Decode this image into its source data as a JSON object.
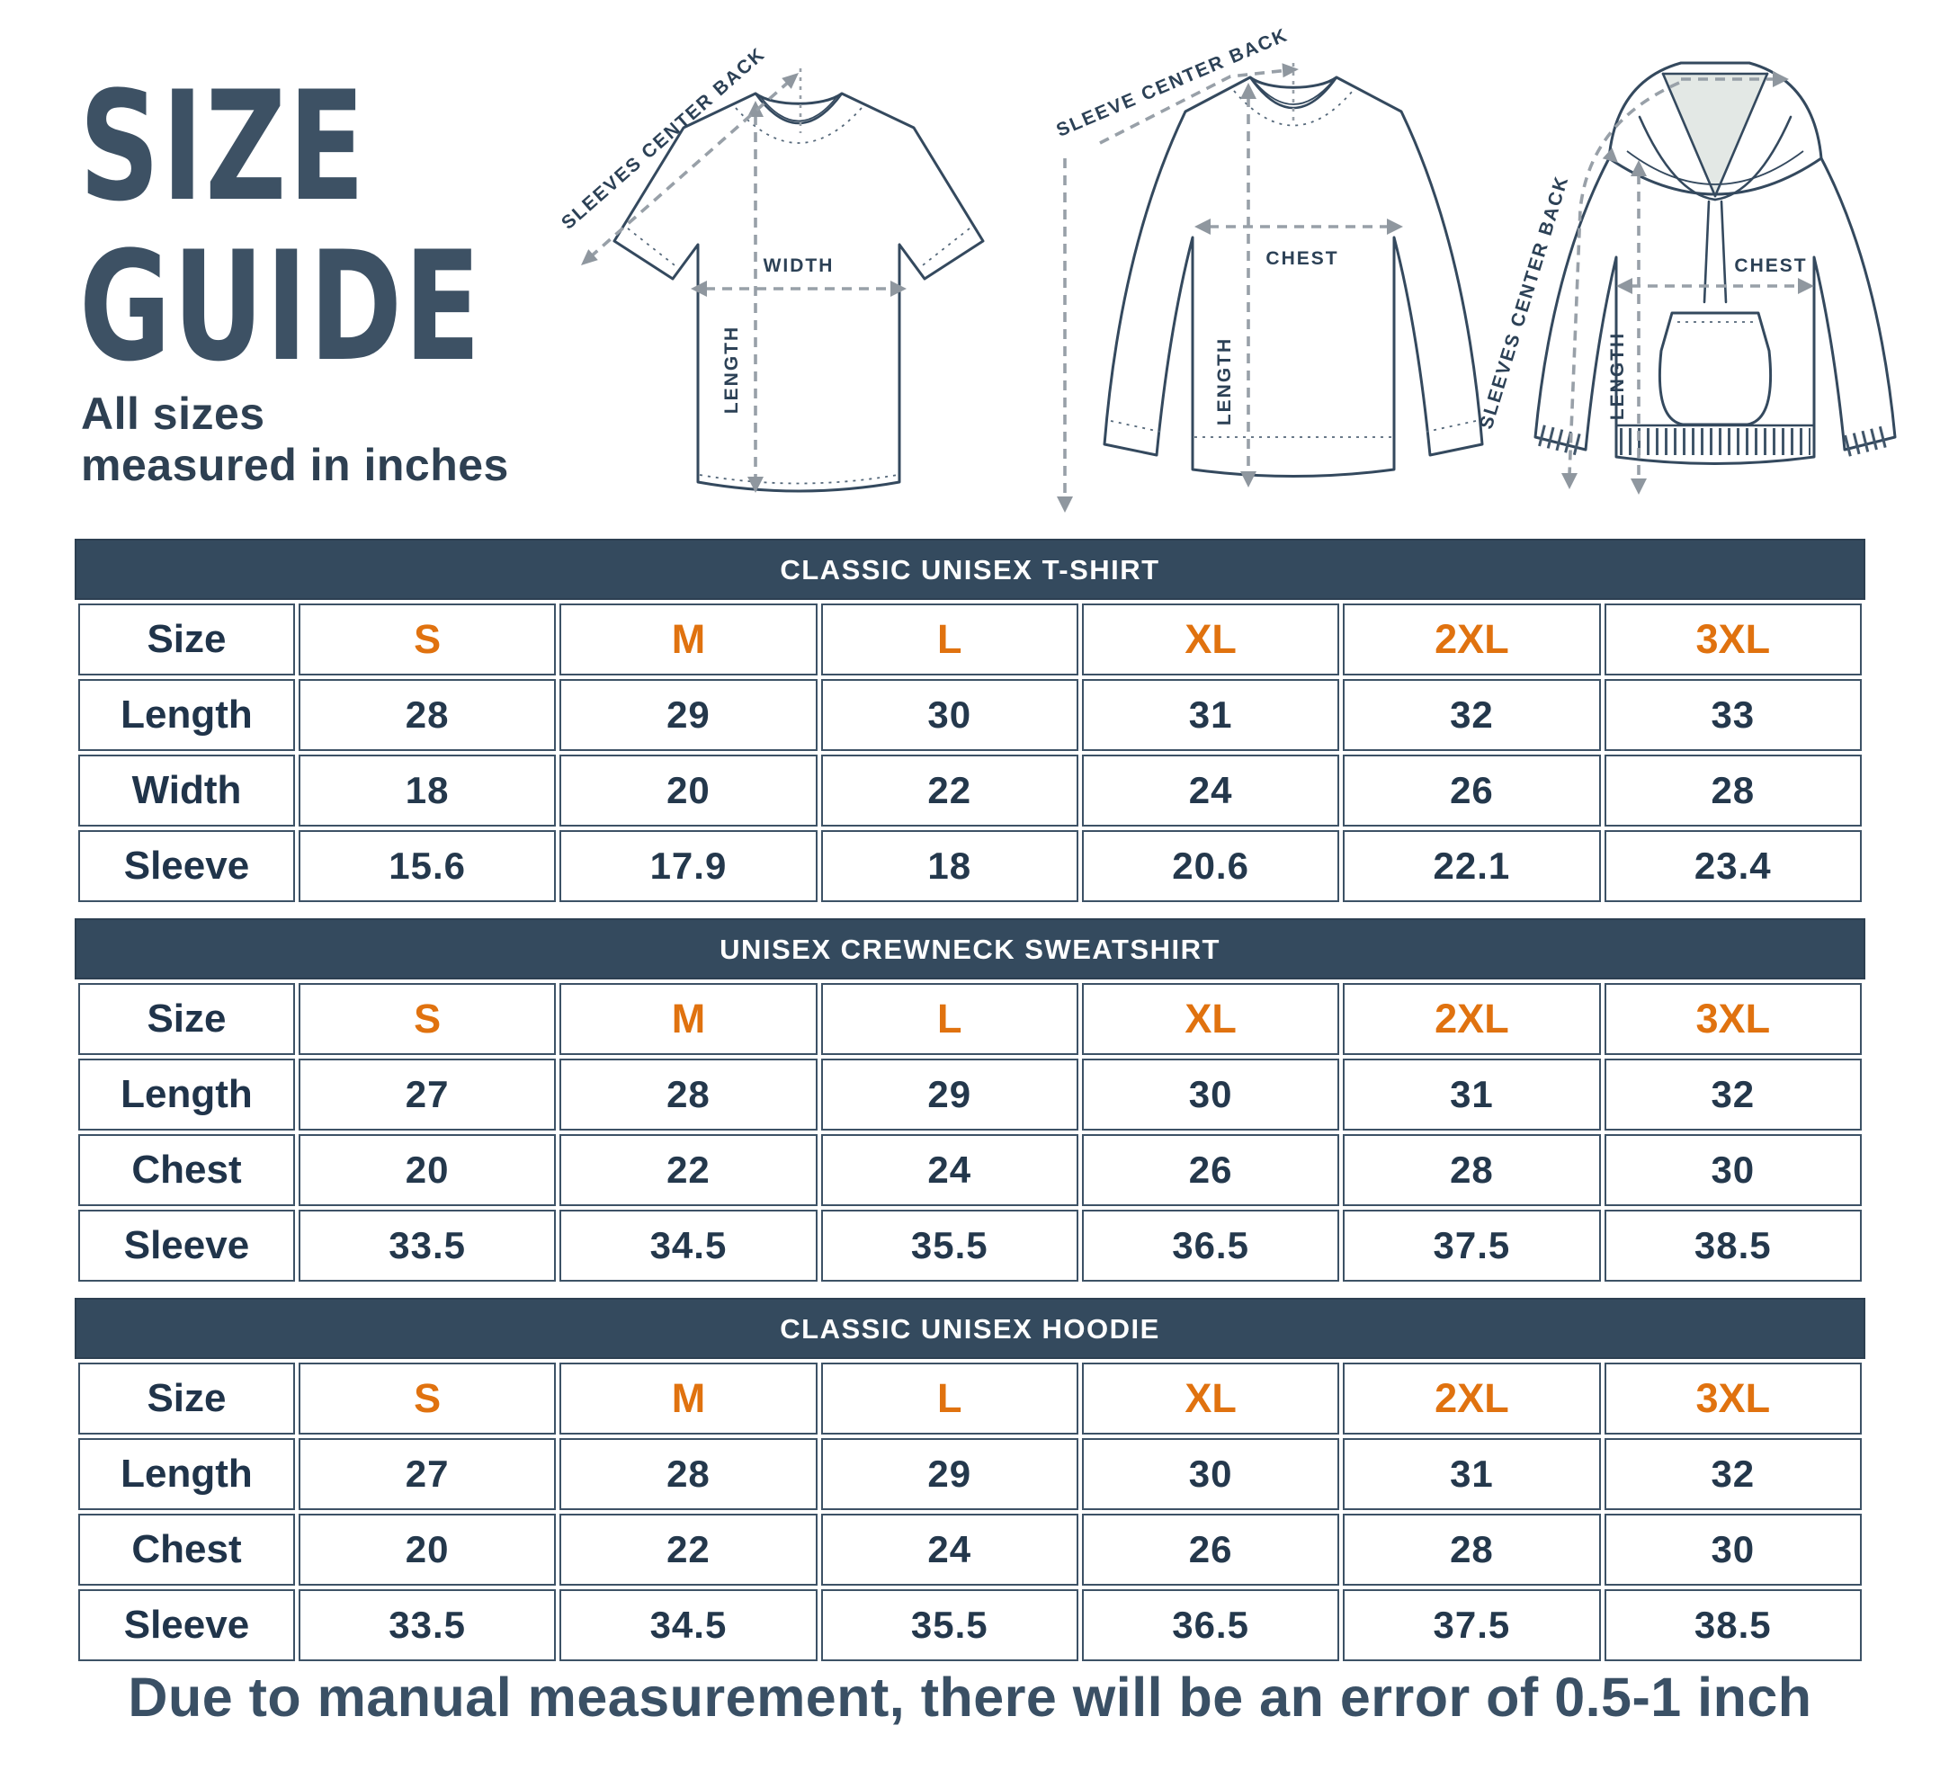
{
  "page": {
    "title_line1": "SIZE",
    "title_line2": "GUIDE",
    "subtitle_line1": "All sizes",
    "subtitle_line2": "measured in inches",
    "footer_note": "Due to manual measurement, there will be an error of 0.5-1 inch"
  },
  "colors": {
    "navy_header": "#344a5e",
    "text_dark": "#24384c",
    "accent_orange": "#e0720f",
    "table_border": "#3d5266",
    "arrow_gray": "#98a0a8",
    "outline_navy": "#34495e"
  },
  "diagrams": {
    "tshirt": {
      "name": "t-shirt",
      "diagonal_label": "SLEEVES CENTER BACK",
      "width_label": "WIDTH",
      "length_label": "LENGTH"
    },
    "sweatshirt": {
      "name": "crewneck-sweatshirt",
      "diagonal_label": "SLEEVE CENTER BACK",
      "chest_label": "CHEST",
      "length_label": "LENGTH"
    },
    "hoodie": {
      "name": "hoodie",
      "diagonal_label": "SLEEVES CENTER BACK",
      "chest_label": "CHEST",
      "length_label": "LENGTH"
    }
  },
  "tables": [
    {
      "id": "tshirt",
      "title": "CLASSIC UNISEX T-SHIRT",
      "size_row_label": "Size",
      "sizes": [
        "S",
        "M",
        "L",
        "XL",
        "2XL",
        "3XL"
      ],
      "rows": [
        {
          "label": "Length",
          "values": [
            "28",
            "29",
            "30",
            "31",
            "32",
            "33"
          ]
        },
        {
          "label": "Width",
          "values": [
            "18",
            "20",
            "22",
            "24",
            "26",
            "28"
          ]
        },
        {
          "label": "Sleeve",
          "values": [
            "15.6",
            "17.9",
            "18",
            "20.6",
            "22.1",
            "23.4"
          ]
        }
      ]
    },
    {
      "id": "crewneck",
      "title": "UNISEX CREWNECK SWEATSHIRT",
      "size_row_label": "Size",
      "sizes": [
        "S",
        "M",
        "L",
        "XL",
        "2XL",
        "3XL"
      ],
      "rows": [
        {
          "label": "Length",
          "values": [
            "27",
            "28",
            "29",
            "30",
            "31",
            "32"
          ]
        },
        {
          "label": "Chest",
          "values": [
            "20",
            "22",
            "24",
            "26",
            "28",
            "30"
          ]
        },
        {
          "label": "Sleeve",
          "values": [
            "33.5",
            "34.5",
            "35.5",
            "36.5",
            "37.5",
            "38.5"
          ]
        }
      ]
    },
    {
      "id": "hoodie",
      "title": "CLASSIC UNISEX HOODIE",
      "size_row_label": "Size",
      "sizes": [
        "S",
        "M",
        "L",
        "XL",
        "2XL",
        "3XL"
      ],
      "rows": [
        {
          "label": "Length",
          "values": [
            "27",
            "28",
            "29",
            "30",
            "31",
            "32"
          ]
        },
        {
          "label": "Chest",
          "values": [
            "20",
            "22",
            "24",
            "26",
            "28",
            "30"
          ]
        },
        {
          "label": "Sleeve",
          "values": [
            "33.5",
            "34.5",
            "35.5",
            "36.5",
            "37.5",
            "38.5"
          ]
        }
      ]
    }
  ]
}
